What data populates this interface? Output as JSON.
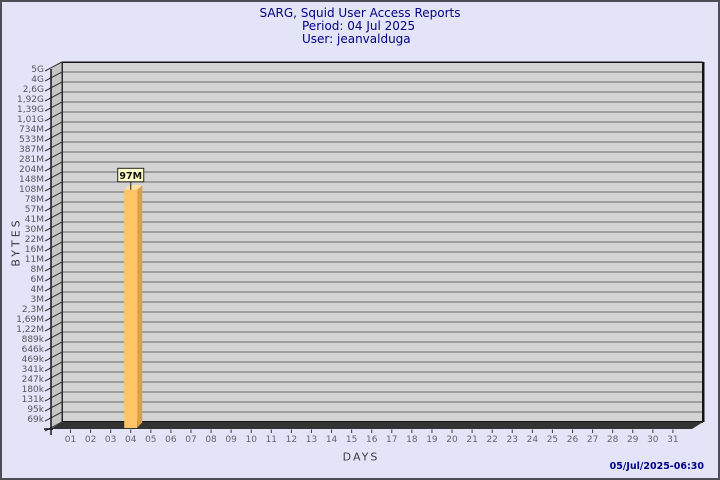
{
  "window": {
    "background": "#e3e4f7",
    "border_color": "#4d4d58"
  },
  "header": {
    "title": "SARG, Squid User Access Reports",
    "period_line": "Period: 04 Jul 2025",
    "user_line": "User: jeanvalduga",
    "text_color": "#000082"
  },
  "footer": {
    "timestamp": "05/Jul/2025-06:30"
  },
  "chart_data": {
    "type": "bar",
    "title": "SARG, Squid User Access Reports",
    "period": "04 Jul 2025",
    "user": "jeanvalduga",
    "xlabel": "DAYS",
    "ylabel": "BYTES",
    "y_scale": "logarithmic",
    "legend": "none",
    "grid": "horizontal",
    "style": "3d-bar",
    "y_tick_labels": [
      "5G",
      "4G",
      "2,6G",
      "1,92G",
      "1,39G",
      "1,01G",
      "734M",
      "533M",
      "387M",
      "281M",
      "204M",
      "148M",
      "108M",
      "78M",
      "57M",
      "41M",
      "30M",
      "22M",
      "16M",
      "11M",
      "8M",
      "6M",
      "4M",
      "3M",
      "2,3M",
      "1,69M",
      "1,22M",
      "889k",
      "646k",
      "469k",
      "341k",
      "247k",
      "180k",
      "131k",
      "95k",
      "69k"
    ],
    "categories": [
      "01",
      "02",
      "03",
      "04",
      "05",
      "06",
      "07",
      "08",
      "09",
      "10",
      "11",
      "12",
      "13",
      "14",
      "15",
      "16",
      "17",
      "18",
      "19",
      "20",
      "21",
      "22",
      "23",
      "24",
      "25",
      "26",
      "27",
      "28",
      "29",
      "30",
      "31"
    ],
    "values": [
      0,
      0,
      0,
      97000000,
      0,
      0,
      0,
      0,
      0,
      0,
      0,
      0,
      0,
      0,
      0,
      0,
      0,
      0,
      0,
      0,
      0,
      0,
      0,
      0,
      0,
      0,
      0,
      0,
      0,
      0,
      0
    ],
    "bar_labels": [
      "",
      "",
      "",
      "97M",
      "",
      "",
      "",
      "",
      "",
      "",
      "",
      "",
      "",
      "",
      "",
      "",
      "",
      "",
      "",
      "",
      "",
      "",
      "",
      "",
      "",
      "",
      "",
      "",
      "",
      "",
      ""
    ],
    "colors": {
      "bar_front": "#fdc468",
      "bar_side": "#d9a04b",
      "bar_top": "#fbe0a6",
      "plot_bg": "#d3d3d3",
      "side_wall": "#c6c6c6",
      "gridline": "#696969",
      "axis_edge": "#141414",
      "floor": "#333333",
      "y_tick_text": "#56565c",
      "x_tick_text": "#63636a",
      "label_box_bg": "#ffffc9",
      "label_box_border": "#222222",
      "label_text": "#111111"
    }
  }
}
